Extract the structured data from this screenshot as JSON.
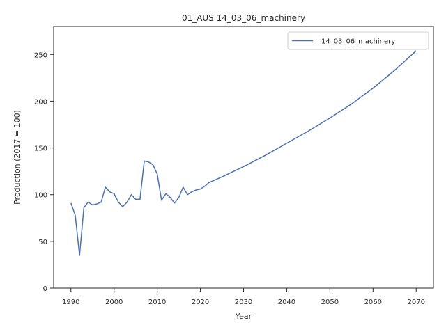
{
  "chart_data": {
    "type": "line",
    "title": "01_AUS 14_03_06_machinery",
    "xlabel": "Year",
    "ylabel": "Production (2017 = 100)",
    "xlim": [
      1986,
      2074
    ],
    "ylim": [
      0,
      280
    ],
    "xticks": [
      1990,
      2000,
      2010,
      2020,
      2030,
      2040,
      2050,
      2060,
      2070
    ],
    "yticks": [
      0,
      50,
      100,
      150,
      200,
      250
    ],
    "legend_position": "top-right",
    "grid": false,
    "series": [
      {
        "name": "14_03_06_machinery",
        "color": "#4c72b0",
        "x": [
          1990,
          1991,
          1992,
          1993,
          1994,
          1995,
          1996,
          1997,
          1998,
          1999,
          2000,
          2001,
          2002,
          2003,
          2004,
          2005,
          2006,
          2007,
          2008,
          2009,
          2010,
          2011,
          2012,
          2013,
          2014,
          2015,
          2016,
          2017,
          2018,
          2019,
          2020,
          2021,
          2022,
          2025,
          2030,
          2035,
          2040,
          2045,
          2050,
          2055,
          2060,
          2065,
          2070
        ],
        "y": [
          91,
          78,
          35,
          86,
          92,
          89,
          90,
          92,
          108,
          103,
          101,
          92,
          87,
          92,
          100,
          95,
          95,
          136,
          135,
          132,
          122,
          94,
          101,
          97,
          91,
          97,
          108,
          100,
          103,
          105,
          106,
          109,
          113,
          119,
          130,
          142,
          155,
          168,
          182,
          197,
          214,
          233,
          254
        ]
      }
    ]
  }
}
